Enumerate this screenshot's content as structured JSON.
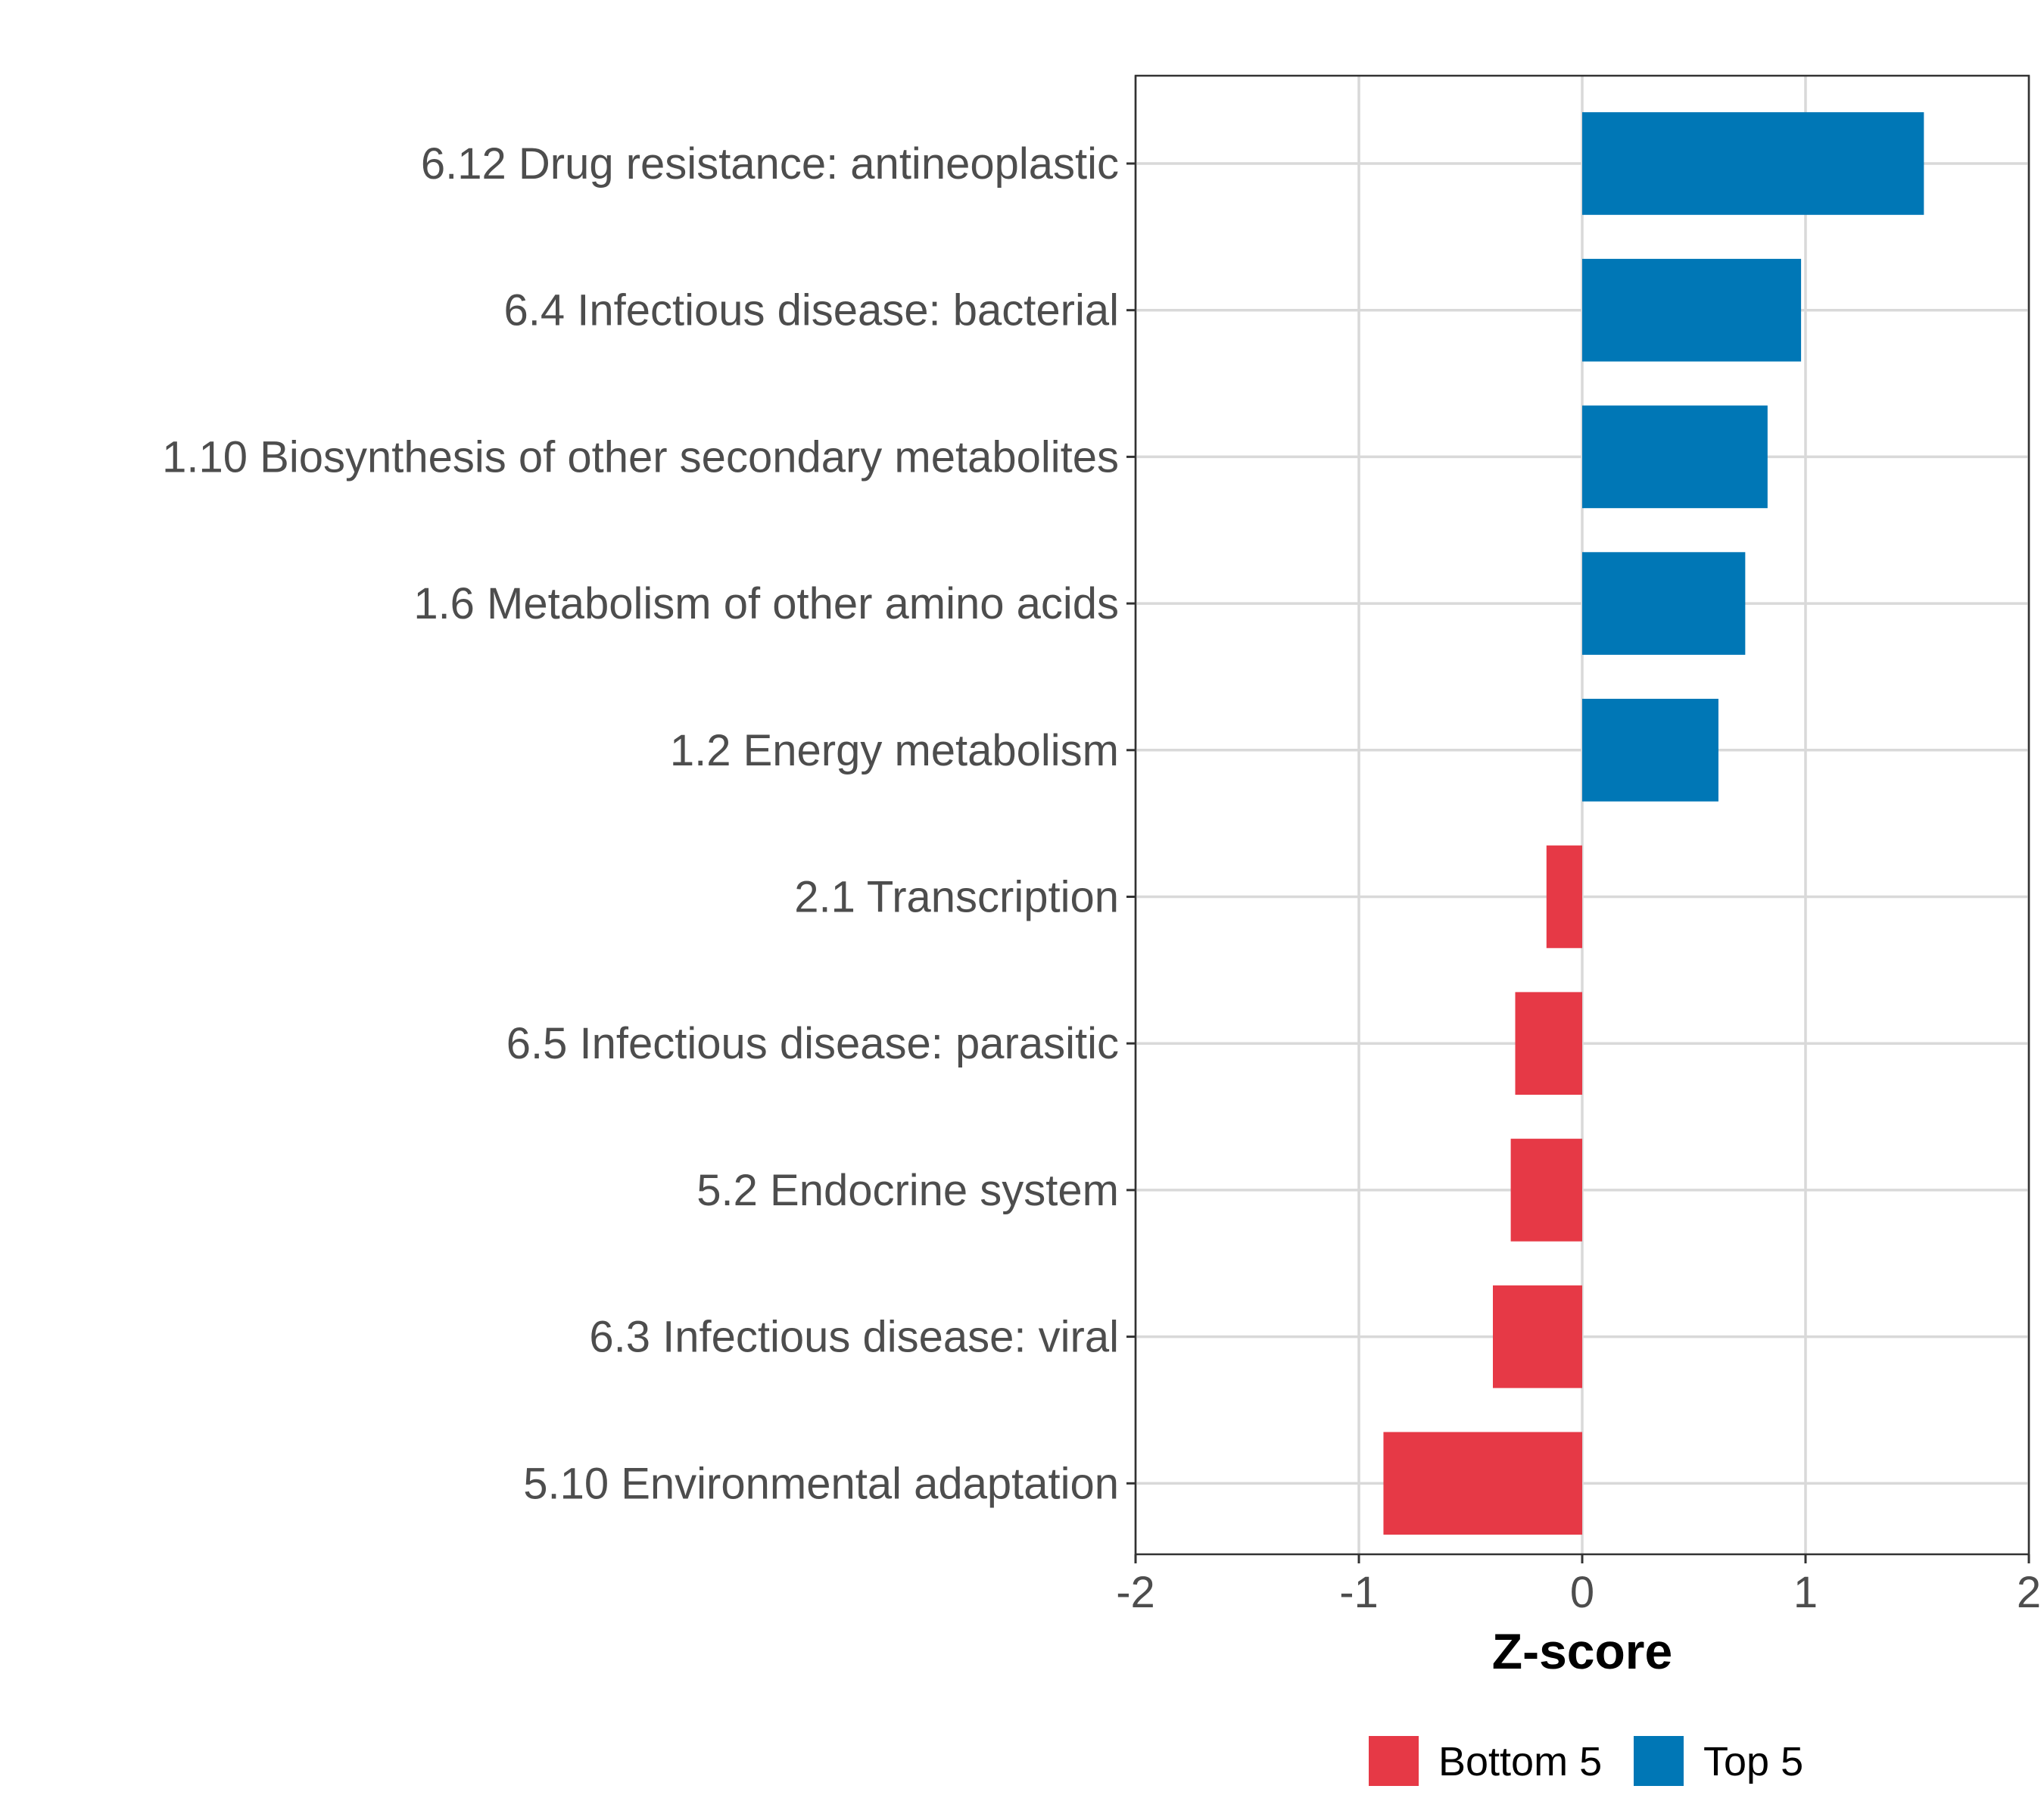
{
  "chart_data": {
    "type": "bar",
    "orientation": "horizontal",
    "categories": [
      "6.12 Drug resistance: antineoplastic",
      "6.4 Infectious disease: bacterial",
      "1.10 Biosynthesis of other secondary metabolites",
      "1.6 Metabolism of other amino acids",
      "1.2 Energy metabolism",
      "2.1 Transcription",
      "6.5 Infectious disease: parasitic",
      "5.2 Endocrine system",
      "6.3 Infectious disease: viral",
      "5.10 Environmental adaptation"
    ],
    "values": [
      1.53,
      0.98,
      0.83,
      0.73,
      0.61,
      -0.16,
      -0.3,
      -0.32,
      -0.4,
      -0.89
    ],
    "groups": [
      "Top 5",
      "Top 5",
      "Top 5",
      "Top 5",
      "Top 5",
      "Bottom 5",
      "Bottom 5",
      "Bottom 5",
      "Bottom 5",
      "Bottom 5"
    ],
    "xlabel": "Z-score",
    "ylabel": "",
    "xlim": [
      -2,
      2
    ],
    "xticks": [
      "-2",
      "-1",
      "0",
      "1",
      "2"
    ],
    "xtick_values": [
      -2,
      -1,
      0,
      1,
      2
    ],
    "grid": true,
    "legend": {
      "position": "bottom",
      "entries": [
        {
          "label": "Bottom 5",
          "color": "#E63946"
        },
        {
          "label": "Top 5",
          "color": "#0077B6"
        }
      ]
    },
    "colors": {
      "Top 5": "#0077B6",
      "Bottom 5": "#E63946"
    }
  }
}
